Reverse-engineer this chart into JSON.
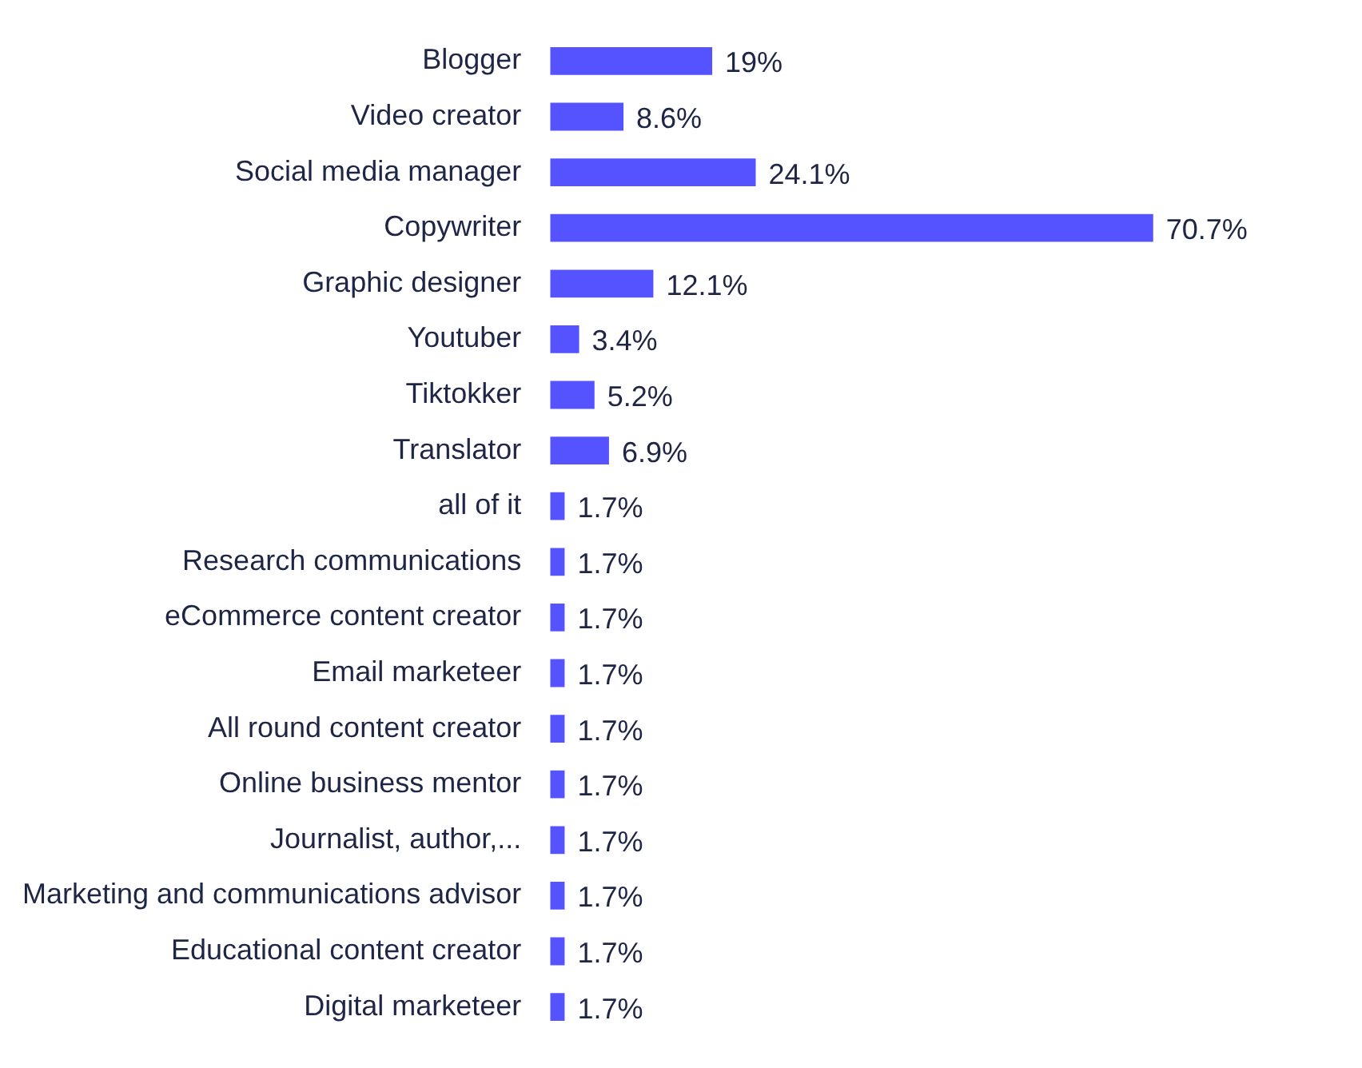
{
  "chart_data": {
    "type": "bar",
    "orientation": "horizontal",
    "categories": [
      "Blogger",
      "Video creator",
      "Social media manager",
      "Copywriter",
      "Graphic designer",
      "Youtuber",
      "Tiktokker",
      "Translator",
      "all of it",
      "Research communications",
      "eCommerce content creator",
      "Email marketeer",
      "All round content creator",
      "Online business mentor",
      "Journalist, author,...",
      "Marketing and communications advisor",
      "Educational content creator",
      "Digital marketeer"
    ],
    "values": [
      19,
      8.6,
      24.1,
      70.7,
      12.1,
      3.4,
      5.2,
      6.9,
      1.7,
      1.7,
      1.7,
      1.7,
      1.7,
      1.7,
      1.7,
      1.7,
      1.7,
      1.7
    ],
    "value_labels": [
      "19%",
      "8.6%",
      "24.1%",
      "70.7%",
      "12.1%",
      "3.4%",
      "5.2%",
      "6.9%",
      "1.7%",
      "1.7%",
      "1.7%",
      "1.7%",
      "1.7%",
      "1.7%",
      "1.7%",
      "1.7%",
      "1.7%",
      "1.7%"
    ],
    "color": "#5553ff"
  }
}
